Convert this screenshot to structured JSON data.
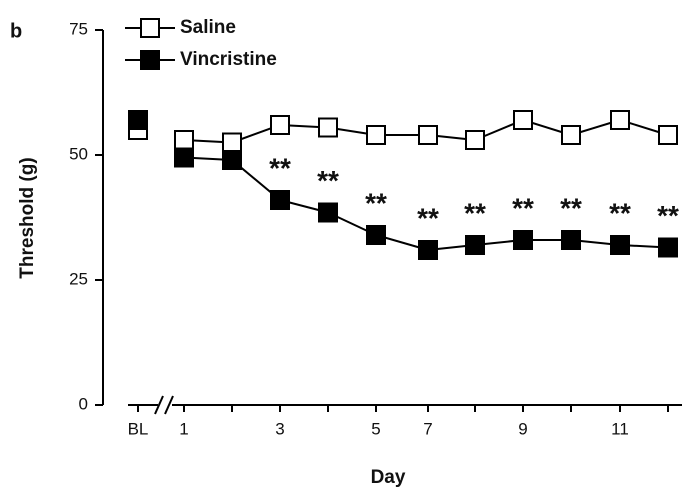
{
  "chart_data": {
    "type": "line",
    "panel_label": "b",
    "x_label": "Day",
    "y_label": "Threshold (g)",
    "categories": [
      "BL",
      "1",
      null,
      "3",
      null,
      "5",
      "7",
      null,
      "9",
      null,
      "11",
      null
    ],
    "series": [
      {
        "name": "Saline",
        "color": "#ffffff",
        "values": [
          55,
          53,
          52.5,
          56,
          55.5,
          54,
          54,
          53,
          57,
          54,
          57,
          54
        ]
      },
      {
        "name": "Vincristine",
        "color": "#000000",
        "values": [
          57,
          49.5,
          49,
          41,
          38.5,
          34,
          31,
          32,
          33,
          33,
          32,
          31.5
        ]
      }
    ],
    "annotations": [
      null,
      null,
      null,
      "**",
      "**",
      "**",
      "**",
      "**",
      "**",
      "**",
      "**",
      "**"
    ],
    "ylim": [
      0,
      75
    ],
    "yticks": [
      0,
      25,
      50,
      75
    ],
    "legend": "upper-left"
  }
}
